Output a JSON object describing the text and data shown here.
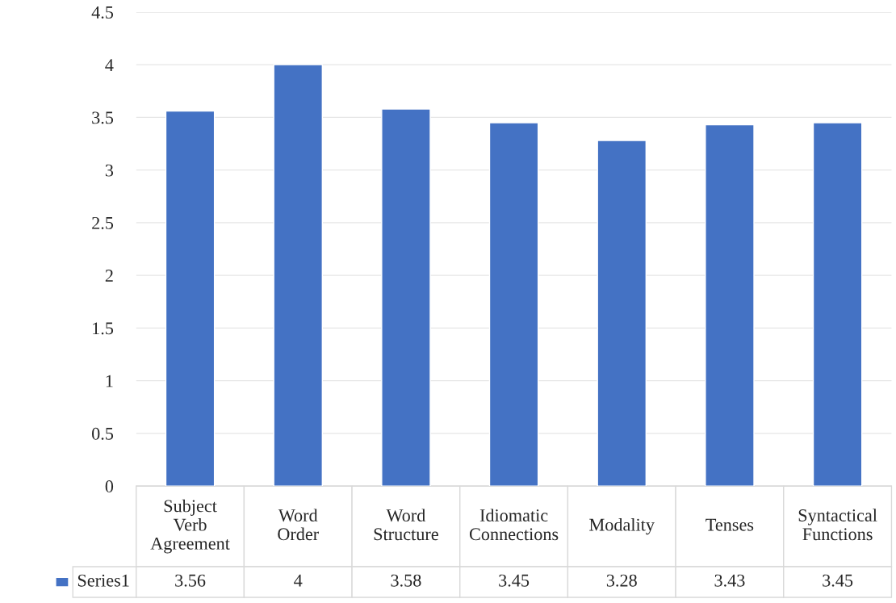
{
  "chart_data": {
    "type": "bar",
    "categories": [
      "Subject Verb Agreement",
      "Word Order",
      "Word Structure",
      "Idiomatic Connections",
      "Modality",
      "Tenses",
      "Syntactical Functions"
    ],
    "series": [
      {
        "name": "Series1",
        "color": "#4472c4",
        "values": [
          3.56,
          4,
          3.58,
          3.45,
          3.28,
          3.43,
          3.45
        ]
      }
    ],
    "ylim": [
      0,
      4.5
    ],
    "yticks": [
      0,
      0.5,
      1,
      1.5,
      2,
      2.5,
      3,
      3.5,
      4,
      4.5
    ],
    "grid": "y",
    "legend": "bottom",
    "data_labels": true
  }
}
